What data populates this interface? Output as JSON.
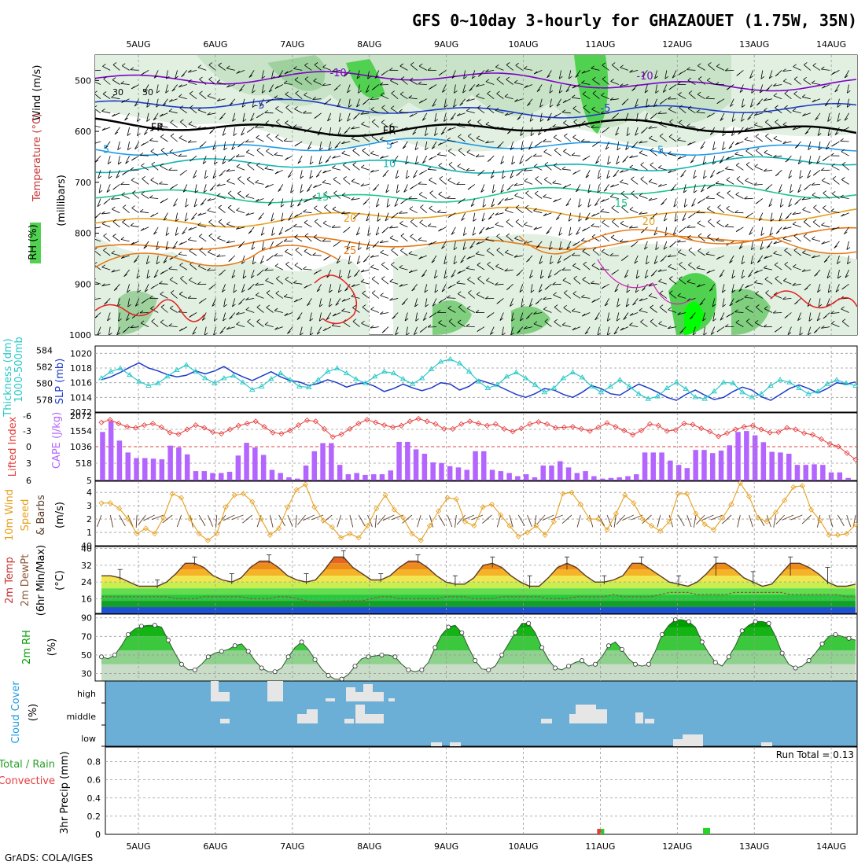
{
  "title": "GFS 0~10day 3-hourly for GHAZAOUET (1.75W, 35N)",
  "footer": "GrADS: COLA/IGES",
  "date_labels": [
    "5AUG",
    "6AUG",
    "7AUG",
    "8AUG",
    "9AUG",
    "10AUG",
    "11AUG",
    "12AUG",
    "13AUG",
    "14AUG"
  ],
  "colors": {
    "temp_cold": "#7f00c8",
    "temp_blue": "#1e3cc8",
    "temp_cyan": "#1e9be6",
    "temp_teal": "#14b4b4",
    "temp_green": "#1ec88c",
    "temp_orange": "#e6a01e",
    "temp_dark_orange": "#e67814",
    "temp_red": "#e61e1e",
    "rh_light": "#e1f0e1",
    "rh_mid": "#b4dcb4",
    "rh_strong": "#50d250",
    "rh_max": "#00ff00",
    "slp": "#1e3cc8",
    "thickness": "#28c8c8",
    "cape": "#b464ff",
    "lifted": "#e63c3c",
    "wind_speed": "#e6a01e",
    "cloud_bg": "#6baed6",
    "cloud_gap": "#e6e6e6",
    "precip_rain": "#28d228",
    "precip_conv": "#e63c3c"
  },
  "chart_data": [
    {
      "panel": "upper_air",
      "type": "heatmap",
      "ylabel_parts": [
        "Wind (m/s)",
        "Temperature (°C)",
        "(millibars)",
        "RH (%)"
      ],
      "yticks": [
        500,
        600,
        700,
        800,
        900,
        1000
      ],
      "ylim": [
        450,
        1000
      ],
      "freezing_label": "FR",
      "rh_contour_labels": [
        "30",
        "50"
      ],
      "isotherms": [
        {
          "label": "-10",
          "level": 490
        },
        {
          "label": "-5",
          "level": 550
        },
        {
          "label": "0",
          "level": 590
        },
        {
          "label": "5",
          "level": 630
        },
        {
          "label": "10",
          "level": 670
        },
        {
          "label": "15",
          "level": 730
        },
        {
          "label": "20",
          "level": 775
        },
        {
          "label": "25",
          "level": 830
        }
      ]
    },
    {
      "panel": "slp_thickness",
      "type": "line",
      "ylabel_left": "1000-500mb Thickness (dm)",
      "ylabel_right": "SLP (mb)",
      "left_ticks": [
        584,
        582,
        580,
        578
      ],
      "right_ticks": [
        1020,
        1018,
        1016,
        1014
      ],
      "bottom_tick": "2072",
      "ylim_slp": [
        1012,
        1021
      ],
      "series": [
        {
          "name": "SLP",
          "values": [
            1016.4,
            1016.8,
            1017.4,
            1018.1,
            1018.7,
            1018.0,
            1017.6,
            1017.1,
            1016.8,
            1017.0,
            1017.6,
            1017.2,
            1017.6,
            1018.2,
            1017.4,
            1016.8,
            1016.3,
            1016.9,
            1017.5,
            1016.8,
            1016.3,
            1016.1,
            1015.6,
            1015.9,
            1016.4,
            1016.0,
            1015.4,
            1015.8,
            1016.0,
            1015.5,
            1014.8,
            1015.2,
            1015.8,
            1015.3,
            1014.9,
            1015.3,
            1016.0,
            1015.8,
            1015.0,
            1015.5,
            1016.4,
            1016.0,
            1015.6,
            1015.0,
            1014.4,
            1014.0,
            1014.5,
            1015.2,
            1015.0,
            1014.4,
            1014.0,
            1014.7,
            1015.6,
            1015.2,
            1014.5,
            1014.3,
            1015.1,
            1015.8,
            1015.3,
            1014.7,
            1014.0,
            1013.6,
            1014.4,
            1015.0,
            1014.3,
            1013.7,
            1014.0,
            1014.8,
            1015.4,
            1015.0,
            1014.1,
            1013.6,
            1014.4,
            1015.2,
            1015.7,
            1015.2,
            1014.6,
            1015.2,
            1016.0,
            1015.8,
            1016.1
          ]
        },
        {
          "name": "Thickness",
          "values": [
            580.6,
            581.4,
            581.8,
            581.0,
            580.2,
            579.7,
            580.0,
            580.8,
            581.6,
            582.2,
            581.4,
            580.6,
            580.0,
            580.6,
            580.9,
            580.1,
            579.2,
            579.6,
            580.5,
            581.2,
            580.4,
            579.6,
            579.5,
            580.4,
            581.4,
            581.8,
            581.2,
            580.5,
            580.0,
            580.8,
            581.4,
            581.2,
            580.5,
            579.9,
            580.6,
            581.7,
            582.6,
            582.9,
            582.4,
            581.4,
            580.2,
            579.4,
            579.8,
            580.8,
            581.3,
            580.6,
            579.8,
            578.9,
            579.4,
            580.6,
            581.3,
            580.7,
            579.6,
            578.9,
            579.6,
            580.4,
            579.6,
            578.7,
            578.1,
            578.4,
            579.4,
            580.1,
            579.3,
            578.3,
            578.1,
            579.0,
            580.1,
            580.0,
            578.9,
            578.3,
            578.7,
            579.7,
            580.4,
            580.1,
            579.4,
            578.7,
            579.0,
            579.9,
            580.4,
            580.0,
            579.7
          ]
        }
      ]
    },
    {
      "panel": "cape_li",
      "type": "bar",
      "ylabel_left": "Lifted Index",
      "ylabel_right": "CAPE (J/kg)",
      "li_ticks": [
        "-6",
        "-3",
        "0",
        "3",
        "6"
      ],
      "cape_ticks": [
        "2072",
        "1554",
        "1036",
        "518",
        "5"
      ],
      "series": [
        {
          "name": "CAPE",
          "values": [
            1560,
            1900,
            1280,
            900,
            720,
            720,
            700,
            680,
            1120,
            1060,
            840,
            300,
            300,
            240,
            240,
            280,
            800,
            1210,
            1060,
            820,
            340,
            240,
            100,
            60,
            480,
            940,
            1200,
            1200,
            500,
            200,
            240,
            180,
            200,
            200,
            320,
            1240,
            1240,
            1000,
            860,
            580,
            560,
            460,
            420,
            340,
            940,
            940,
            340,
            300,
            240,
            140,
            200,
            100,
            480,
            480,
            620,
            420,
            240,
            300,
            140,
            60,
            80,
            100,
            140,
            200,
            900,
            900,
            900,
            640,
            500,
            400,
            980,
            980,
            880,
            960,
            1130,
            1560,
            1590,
            1450,
            1230,
            920,
            900,
            860,
            500,
            500,
            520,
            500,
            260,
            260,
            80
          ]
        },
        {
          "name": "Lifted Index",
          "values": [
            -4.8,
            -5.3,
            -4.6,
            -4.0,
            -3.8,
            -4.3,
            -4.6,
            -3.9,
            -2.9,
            -2.6,
            -3.5,
            -4.3,
            -3.8,
            -3.0,
            -2.7,
            -3.5,
            -4.2,
            -4.6,
            -5.0,
            -4.0,
            -2.9,
            -2.7,
            -3.3,
            -4.3,
            -5.2,
            -5.0,
            -3.6,
            -2.1,
            -2.6,
            -3.6,
            -4.6,
            -5.3,
            -4.8,
            -4.3,
            -3.9,
            -4.2,
            -5.0,
            -5.5,
            -5.0,
            -4.5,
            -3.6,
            -3.6,
            -4.5,
            -5.0,
            -4.6,
            -4.2,
            -4.5,
            -3.6,
            -3.1,
            -3.7,
            -4.5,
            -4.9,
            -4.5,
            -3.8,
            -3.9,
            -4.0,
            -3.6,
            -3.2,
            -3.9,
            -4.7,
            -4.0,
            -3.3,
            -2.5,
            -3.3,
            -4.5,
            -4.2,
            -3.2,
            -3.4,
            -4.6,
            -4.4,
            -3.7,
            -3.1,
            -2.2,
            -2.8,
            -3.5,
            -4.0,
            -4.2,
            -3.5,
            -2.9,
            -3.0,
            -3.8,
            -3.5,
            -2.8,
            -2.5,
            -1.7,
            -0.8,
            -0.3,
            0.9,
            2.1
          ]
        }
      ]
    },
    {
      "panel": "wind_10m",
      "type": "line",
      "ylabel": "10m Wind Speed & Barbs (m/s)",
      "ylabel_parts": [
        "10m Wind",
        "Speed",
        "& Barbs",
        "(m/s)"
      ],
      "yticks": [
        4,
        3,
        2,
        1
      ],
      "ylim": [
        0,
        4.6
      ],
      "series": [
        {
          "name": "Wind speed",
          "values": [
            3.2,
            3.2,
            2.8,
            2.0,
            0.9,
            1.3,
            0.9,
            2.1,
            3.9,
            3.6,
            2.0,
            0.9,
            0.4,
            0.9,
            2.9,
            3.8,
            3.9,
            3.3,
            2.0,
            0.8,
            1.3,
            2.9,
            4.2,
            4.6,
            2.9,
            1.9,
            1.4,
            0.6,
            0.9,
            0.6,
            1.5,
            2.8,
            3.8,
            2.7,
            2.1,
            0.9,
            0.4,
            1.5,
            2.6,
            3.6,
            3.5,
            1.8,
            1.5,
            2.9,
            3.1,
            2.3,
            1.5,
            0.7,
            1.0,
            1.5,
            0.8,
            1.8,
            3.9,
            4.0,
            3.1,
            2.0,
            2.0,
            1.2,
            2.4,
            3.8,
            3.2,
            2.0,
            1.5,
            1.1,
            1.8,
            3.9,
            3.9,
            2.4,
            1.6,
            1.2,
            2.1,
            3.1,
            4.7,
            3.7,
            2.1,
            1.8,
            2.5,
            3.4,
            4.4,
            4.5,
            2.7,
            1.9,
            0.8,
            0.8,
            0.9,
            1.6
          ]
        }
      ]
    },
    {
      "panel": "temp_2m",
      "type": "area",
      "ylabel_parts": [
        "2m Temp",
        "2m DewPt",
        "(6hr Min/Max)",
        "(°C)"
      ],
      "yticks": [
        40,
        32,
        24,
        16
      ],
      "ylim": [
        9,
        41
      ],
      "series": [
        {
          "name": "2m Temp",
          "values": [
            27,
            27,
            26,
            24,
            22,
            22,
            22,
            24,
            28,
            33,
            33,
            31,
            27,
            25,
            24,
            26,
            31,
            34,
            34,
            31,
            27,
            25,
            24,
            25,
            30,
            36,
            36,
            31,
            28,
            25,
            25,
            27,
            31,
            34,
            34,
            31,
            27,
            24,
            23,
            23,
            26,
            32,
            33,
            31,
            27,
            24,
            22,
            22,
            26,
            31,
            33,
            31,
            27,
            24,
            24,
            25,
            27,
            33,
            33,
            30,
            27,
            24,
            23,
            22,
            24,
            28,
            33,
            33,
            30,
            26,
            24,
            22,
            23,
            28,
            33,
            33,
            31,
            28,
            24,
            22,
            22,
            23
          ]
        },
        {
          "name": "2m DewPt",
          "values": [
            17,
            17,
            17,
            17,
            17,
            17,
            17,
            17,
            16,
            16,
            16,
            17,
            17,
            17,
            17,
            17,
            16,
            16,
            16,
            17,
            17,
            16,
            15,
            14,
            13,
            14,
            15,
            15,
            15,
            16,
            17,
            17,
            16,
            16,
            16,
            16,
            16,
            17,
            17,
            17,
            16,
            16,
            16,
            17,
            17,
            17,
            17,
            17,
            16,
            16,
            16,
            17,
            17,
            17,
            17,
            18,
            17,
            17,
            17,
            17,
            18,
            19,
            19,
            19,
            18,
            18,
            18,
            18,
            19,
            19,
            19,
            19,
            19,
            19,
            18,
            18,
            18,
            18,
            18,
            18,
            17,
            17
          ]
        }
      ]
    },
    {
      "panel": "rh_2m",
      "type": "area",
      "ylabel_parts": [
        "2m RH",
        "(%)"
      ],
      "yticks": [
        90,
        70,
        50,
        30
      ],
      "ylim": [
        22,
        94
      ],
      "series": [
        {
          "name": "2m RH",
          "values": [
            48,
            46,
            50,
            60,
            72,
            78,
            81,
            82,
            82,
            80,
            66,
            52,
            40,
            34,
            34,
            40,
            48,
            52,
            54,
            56,
            60,
            62,
            54,
            44,
            36,
            32,
            32,
            36,
            48,
            58,
            64,
            56,
            45,
            35,
            28,
            24,
            24,
            29,
            38,
            46,
            48,
            49,
            50,
            50,
            48,
            40,
            34,
            32,
            34,
            42,
            58,
            72,
            80,
            82,
            74,
            58,
            44,
            35,
            34,
            38,
            50,
            62,
            74,
            84,
            84,
            74,
            58,
            45,
            36,
            34,
            38,
            42,
            44,
            38,
            40,
            48,
            60,
            64,
            56,
            46,
            40,
            38,
            40,
            54,
            72,
            82,
            88,
            88,
            86,
            80,
            64,
            52,
            42,
            38,
            48,
            60,
            76,
            82,
            86,
            86,
            84,
            70,
            52,
            40,
            36,
            38,
            44,
            52,
            62,
            70,
            72,
            70,
            68,
            66
          ]
        }
      ]
    },
    {
      "panel": "cloud_cover",
      "type": "heatmap",
      "ylabel_parts": [
        "Cloud Cover",
        "(%)"
      ],
      "row_labels": [
        "high",
        "middle",
        "low"
      ]
    },
    {
      "panel": "precip",
      "type": "bar",
      "ylabel_parts": [
        "Total / Rain",
        "Convective",
        "3hr Precip (mm)"
      ],
      "yticks": [
        "0.8",
        "0.6",
        "0.4",
        "0.2",
        "0"
      ],
      "ylim": [
        0,
        0.96
      ],
      "run_total_label": "Run Total = 0.13",
      "run_total": 0.13,
      "bars": [
        {
          "date": "11AUG",
          "hour_offset": 0,
          "total": 0.06,
          "convective": 0.06
        },
        {
          "date": "12AUG",
          "hour_offset": 9,
          "total": 0.07,
          "convective": 0.0
        }
      ]
    }
  ]
}
